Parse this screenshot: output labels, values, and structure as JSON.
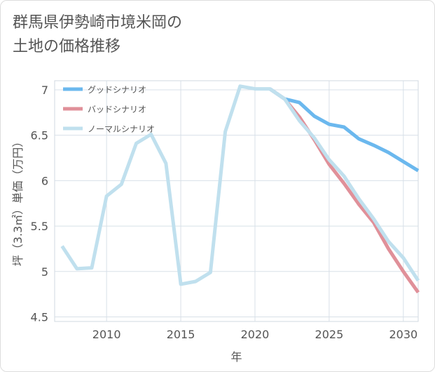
{
  "title_line1": "群馬県伊勢崎市境米岡の",
  "title_line2": "土地の価格推移",
  "chart_data": {
    "type": "line",
    "title": "群馬県伊勢崎市境米岡の土地の価格推移",
    "xlabel": "年",
    "ylabel": "坪（3.3㎡）単価（万円）",
    "xlim": [
      2006.5,
      2031
    ],
    "ylim": [
      4.45,
      7.1
    ],
    "xticks": [
      2010,
      2015,
      2020,
      2025,
      2030
    ],
    "yticks": [
      4.5,
      5,
      5.5,
      6,
      6.5,
      7
    ],
    "ytick_labels": [
      "4.5",
      "5",
      "5.5",
      "6",
      "6.5",
      "7"
    ],
    "grid": true,
    "legend_position": "top-left",
    "series": [
      {
        "name": "グッドシナリオ",
        "color": "#6bb8ee",
        "x": [
          2021,
          2022,
          2023,
          2024,
          2025,
          2026,
          2027,
          2028,
          2029,
          2030,
          2031
        ],
        "y": [
          7.01,
          6.9,
          6.86,
          6.71,
          6.62,
          6.59,
          6.46,
          6.39,
          6.31,
          6.21,
          6.11
        ]
      },
      {
        "name": "バッドシナリオ",
        "color": "#e09099",
        "x": [
          2021,
          2022,
          2023,
          2024,
          2025,
          2026,
          2027,
          2028,
          2029,
          2030,
          2031
        ],
        "y": [
          7.01,
          6.9,
          6.7,
          6.45,
          6.18,
          5.97,
          5.74,
          5.54,
          5.25,
          5.0,
          4.77
        ]
      },
      {
        "name": "ノーマルシナリオ",
        "color": "#c0e0ee",
        "x": [
          2007,
          2008,
          2009,
          2010,
          2011,
          2012,
          2013,
          2014,
          2015,
          2016,
          2017,
          2018,
          2019,
          2020,
          2021,
          2022,
          2023,
          2024,
          2025,
          2026,
          2027,
          2028,
          2029,
          2030,
          2031
        ],
        "y": [
          5.28,
          5.03,
          5.04,
          5.83,
          5.96,
          6.41,
          6.51,
          6.19,
          4.86,
          4.89,
          4.99,
          6.54,
          7.04,
          7.01,
          7.01,
          6.9,
          6.66,
          6.47,
          6.23,
          6.05,
          5.8,
          5.58,
          5.33,
          5.15,
          4.9
        ]
      }
    ]
  }
}
